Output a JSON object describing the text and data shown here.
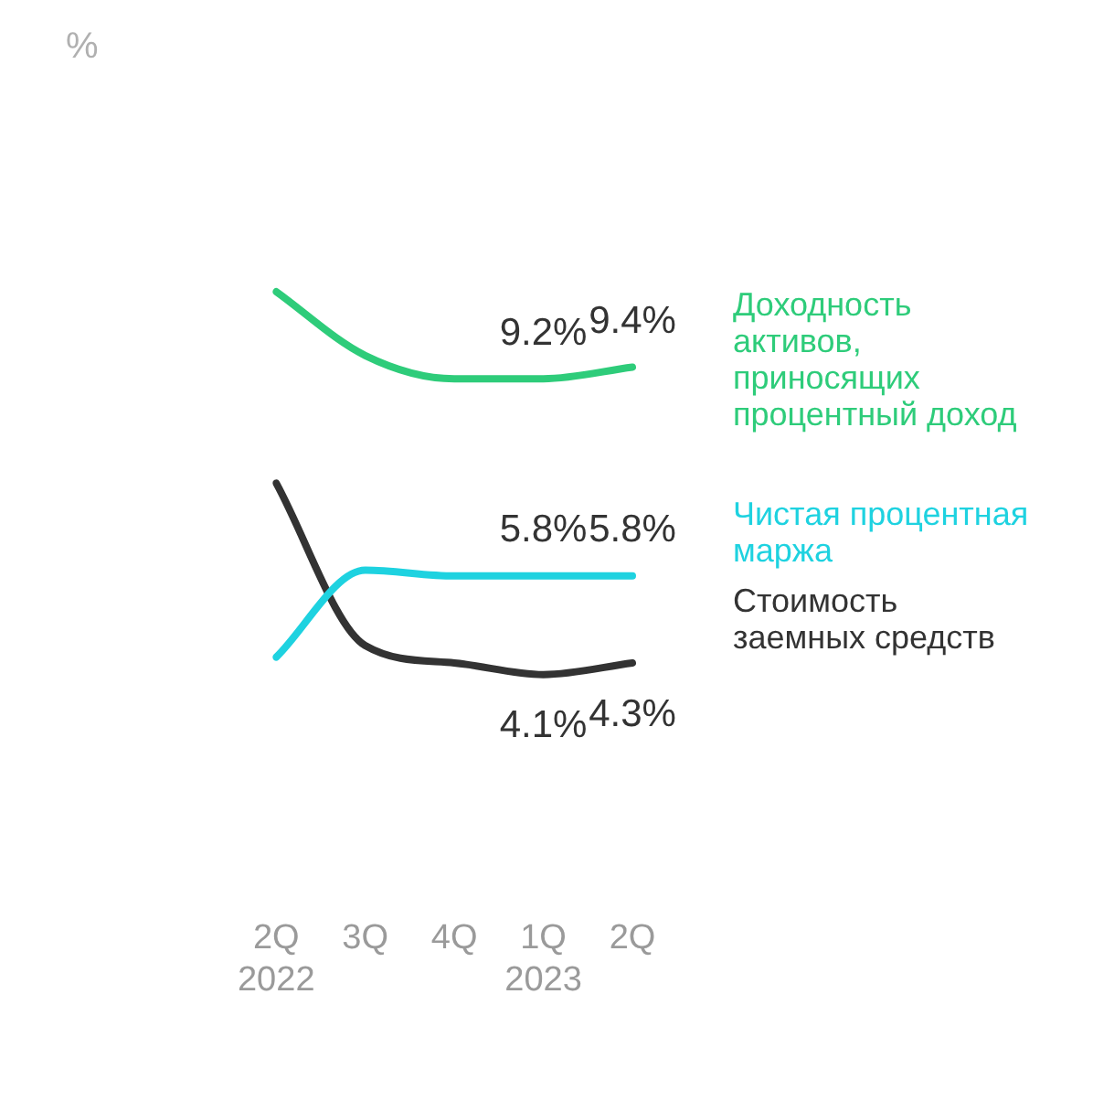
{
  "chart_data": {
    "type": "line",
    "annotations": [
      "%"
    ],
    "categories": [
      "2Q 2022",
      "3Q",
      "4Q",
      "1Q 2023",
      "2Q"
    ],
    "series": [
      {
        "name": "Доходность активов, приносящих процентный доход",
        "color": "#2ecc7a",
        "values": [
          10.7,
          9.6,
          9.2,
          9.2,
          9.4
        ],
        "value_labels": [
          null,
          null,
          null,
          "9.2%",
          "9.4%"
        ]
      },
      {
        "name": "Чистая процентная маржа",
        "color": "#1ed2e0",
        "values": [
          4.4,
          5.9,
          5.8,
          5.8,
          5.8
        ],
        "value_labels": [
          null,
          null,
          null,
          "5.8%",
          "5.8%"
        ]
      },
      {
        "name": "Стоимость заемных средств",
        "color": "#333333",
        "values": [
          7.4,
          4.6,
          4.3,
          4.1,
          4.3
        ],
        "value_labels": [
          null,
          null,
          null,
          "4.1%",
          "4.3%"
        ]
      }
    ],
    "grid": false,
    "legend": false,
    "marker": "none",
    "line_style": "solid"
  }
}
